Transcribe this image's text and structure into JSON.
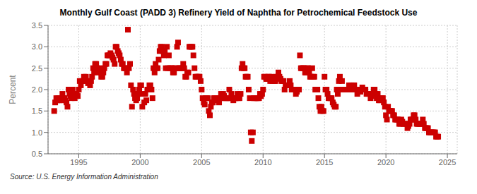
{
  "chart_data": {
    "type": "scatter",
    "title": "Monthly Gulf Coast (PADD 3) Refinery Yield of Naphtha for Petrochemical Feedstock Use",
    "ylabel": "Percent",
    "annotations": [
      "Source: U.S. Energy Information Administration"
    ],
    "xlim": [
      1992.5,
      2025.8
    ],
    "xticks": [
      1995,
      2000,
      2005,
      2010,
      2015,
      2020,
      2025
    ],
    "ylim": [
      0.5,
      3.5
    ],
    "yticks": [
      0.5,
      {
        "value": 1.0,
        "label": "1.0"
      },
      1.5,
      {
        "value": 2.0,
        "label": "2.0"
      },
      2.5,
      {
        "value": 3.0,
        "label": "3.0"
      },
      3.5
    ],
    "grid": true,
    "color": "#cc0000",
    "marker": "square",
    "x": [
      1993.0,
      1993.08,
      1993.17,
      1993.25,
      1993.33,
      1993.42,
      1993.5,
      1993.58,
      1993.67,
      1993.75,
      1993.83,
      1993.92,
      1994.0,
      1994.08,
      1994.17,
      1994.25,
      1994.33,
      1994.42,
      1994.5,
      1994.58,
      1994.67,
      1994.75,
      1994.83,
      1994.92,
      1995.0,
      1995.08,
      1995.17,
      1995.25,
      1995.33,
      1995.42,
      1995.5,
      1995.58,
      1995.67,
      1995.75,
      1995.83,
      1995.92,
      1996.0,
      1996.08,
      1996.17,
      1996.25,
      1996.33,
      1996.42,
      1996.5,
      1996.58,
      1996.67,
      1996.75,
      1996.83,
      1996.92,
      1997.0,
      1997.08,
      1997.17,
      1997.25,
      1997.33,
      1997.42,
      1997.5,
      1997.58,
      1997.67,
      1997.75,
      1997.83,
      1997.92,
      1998.0,
      1998.08,
      1998.17,
      1998.25,
      1998.33,
      1998.42,
      1998.5,
      1998.58,
      1998.67,
      1998.75,
      1998.83,
      1998.92,
      1999.0,
      1999.08,
      1999.17,
      1999.25,
      1999.33,
      1999.42,
      1999.5,
      1999.58,
      1999.67,
      1999.75,
      1999.83,
      1999.92,
      2000.0,
      2000.08,
      2000.17,
      2000.25,
      2000.33,
      2000.42,
      2000.5,
      2000.58,
      2000.67,
      2000.75,
      2000.83,
      2000.92,
      2001.0,
      2001.08,
      2001.17,
      2001.25,
      2001.33,
      2001.42,
      2001.5,
      2001.58,
      2001.67,
      2001.75,
      2001.83,
      2001.92,
      2002.0,
      2002.08,
      2002.17,
      2002.25,
      2002.33,
      2002.42,
      2002.5,
      2002.58,
      2002.67,
      2002.75,
      2002.83,
      2002.92,
      2003.0,
      2003.08,
      2003.17,
      2003.25,
      2003.33,
      2003.42,
      2003.5,
      2003.58,
      2003.67,
      2003.75,
      2003.83,
      2003.92,
      2004.0,
      2004.08,
      2004.17,
      2004.25,
      2004.33,
      2004.42,
      2004.5,
      2004.58,
      2004.67,
      2004.75,
      2004.83,
      2004.92,
      2005.0,
      2005.08,
      2005.17,
      2005.25,
      2005.33,
      2005.42,
      2005.5,
      2005.58,
      2005.67,
      2005.75,
      2005.83,
      2005.92,
      2006.0,
      2006.08,
      2006.17,
      2006.25,
      2006.33,
      2006.42,
      2006.5,
      2006.58,
      2006.67,
      2006.75,
      2006.83,
      2006.92,
      2007.0,
      2007.08,
      2007.17,
      2007.25,
      2007.33,
      2007.42,
      2007.5,
      2007.58,
      2007.67,
      2007.75,
      2007.83,
      2007.92,
      2008.0,
      2008.08,
      2008.17,
      2008.25,
      2008.33,
      2008.42,
      2008.5,
      2008.58,
      2008.67,
      2008.75,
      2008.83,
      2008.92,
      2009.0,
      2009.08,
      2009.17,
      2009.25,
      2009.33,
      2009.42,
      2009.5,
      2009.58,
      2009.67,
      2009.75,
      2009.83,
      2009.92,
      2010.0,
      2010.08,
      2010.17,
      2010.25,
      2010.33,
      2010.42,
      2010.5,
      2010.58,
      2010.67,
      2010.75,
      2010.83,
      2010.92,
      2011.0,
      2011.08,
      2011.17,
      2011.25,
      2011.33,
      2011.42,
      2011.5,
      2011.58,
      2011.67,
      2011.75,
      2011.83,
      2011.92,
      2012.0,
      2012.08,
      2012.17,
      2012.25,
      2012.33,
      2012.42,
      2012.5,
      2012.58,
      2012.67,
      2012.75,
      2012.83,
      2012.92,
      2013.0,
      2013.08,
      2013.17,
      2013.25,
      2013.33,
      2013.42,
      2013.5,
      2013.58,
      2013.67,
      2013.75,
      2013.83,
      2013.92,
      2014.0,
      2014.08,
      2014.17,
      2014.25,
      2014.33,
      2014.42,
      2014.5,
      2014.58,
      2014.67,
      2014.75,
      2014.83,
      2014.92,
      2015.0,
      2015.08,
      2015.17,
      2015.25,
      2015.33,
      2015.42,
      2015.5,
      2015.58,
      2015.67,
      2015.75,
      2015.83,
      2015.92,
      2016.0,
      2016.08,
      2016.17,
      2016.25,
      2016.33,
      2016.42,
      2016.5,
      2016.58,
      2016.67,
      2016.75,
      2016.83,
      2016.92,
      2017.0,
      2017.08,
      2017.17,
      2017.25,
      2017.33,
      2017.42,
      2017.5,
      2017.58,
      2017.67,
      2017.75,
      2017.83,
      2017.92,
      2018.0,
      2018.08,
      2018.17,
      2018.25,
      2018.33,
      2018.42,
      2018.5,
      2018.58,
      2018.67,
      2018.75,
      2018.83,
      2018.92,
      2019.0,
      2019.08,
      2019.17,
      2019.25,
      2019.33,
      2019.42,
      2019.5,
      2019.58,
      2019.67,
      2019.75,
      2019.83,
      2019.92,
      2020.0,
      2020.08,
      2020.17,
      2020.25,
      2020.33,
      2020.42,
      2020.5,
      2020.58,
      2020.67,
      2020.75,
      2020.83,
      2020.92,
      2021.0,
      2021.08,
      2021.17,
      2021.25,
      2021.33,
      2021.42,
      2021.5,
      2021.58,
      2021.67,
      2021.75,
      2021.83,
      2021.92,
      2022.0,
      2022.08,
      2022.17,
      2022.25,
      2022.33,
      2022.42,
      2022.5,
      2022.58,
      2022.67,
      2022.75,
      2022.83,
      2022.92,
      2023.0,
      2023.08,
      2023.17,
      2023.25,
      2023.33,
      2023.42,
      2023.5,
      2023.58,
      2023.67,
      2023.75,
      2023.83,
      2023.92,
      2024.0,
      2024.08,
      2024.17,
      2024.25
    ],
    "values": [
      1.5,
      1.7,
      1.8,
      1.75,
      1.8,
      1.75,
      1.8,
      1.75,
      1.9,
      1.8,
      1.8,
      1.75,
      1.7,
      1.6,
      2.0,
      1.9,
      1.85,
      1.8,
      2.0,
      1.9,
      1.8,
      1.9,
      1.9,
      1.85,
      2.0,
      2.2,
      2.1,
      2.2,
      2.2,
      2.3,
      2.25,
      2.3,
      2.2,
      2.15,
      2.2,
      2.1,
      2.2,
      2.3,
      2.5,
      2.4,
      2.6,
      2.6,
      2.5,
      2.4,
      2.5,
      2.4,
      2.3,
      2.3,
      2.4,
      2.5,
      2.6,
      2.6,
      2.8,
      2.8,
      2.8,
      2.85,
      2.8,
      2.75,
      2.7,
      2.6,
      3.0,
      3.0,
      2.9,
      2.85,
      2.8,
      2.7,
      2.6,
      2.6,
      2.5,
      2.5,
      2.5,
      2.4,
      3.4,
      2.5,
      2.6,
      2.1,
      1.6,
      2.0,
      1.9,
      1.8,
      1.75,
      1.8,
      1.9,
      2.0,
      2.1,
      2.1,
      1.6,
      1.9,
      1.7,
      1.9,
      1.75,
      2.0,
      2.0,
      2.1,
      2.1,
      2.0,
      1.8,
      2.5,
      2.4,
      2.6,
      2.5,
      2.5,
      2.7,
      2.9,
      3.0,
      3.0,
      2.9,
      2.8,
      2.9,
      2.5,
      3.0,
      2.5,
      2.8,
      2.5,
      2.5,
      2.5,
      2.4,
      2.4,
      2.5,
      2.5,
      3.0,
      3.1,
      2.5,
      2.5,
      2.5,
      2.5,
      2.6,
      2.5,
      2.3,
      2.3,
      2.4,
      2.4,
      3.0,
      3.0,
      3.0,
      3.0,
      2.8,
      2.5,
      2.3,
      2.3,
      2.3,
      2.3,
      2.3,
      2.2,
      2.0,
      1.8,
      1.7,
      1.65,
      1.8,
      1.8,
      1.8,
      1.5,
      1.4,
      1.6,
      1.7,
      1.7,
      1.8,
      1.8,
      1.75,
      1.8,
      1.8,
      1.7,
      1.8,
      1.9,
      1.8,
      1.9,
      1.85,
      1.8,
      1.8,
      1.8,
      1.8,
      2.0,
      1.8,
      1.9,
      1.8,
      1.75,
      1.8,
      1.8,
      1.8,
      1.9,
      1.8,
      1.8,
      1.9,
      2.5,
      2.6,
      2.5,
      2.5,
      2.3,
      2.3,
      2.3,
      2.0,
      1.8,
      1.0,
      0.8,
      1.0,
      1.8,
      1.8,
      1.8,
      1.8,
      1.8,
      1.8,
      1.9,
      1.85,
      1.9,
      2.0,
      2.3,
      2.3,
      2.25,
      2.25,
      2.3,
      2.3,
      2.2,
      2.3,
      2.2,
      2.25,
      2.2,
      2.2,
      2.3,
      2.3,
      2.4,
      2.3,
      2.25,
      2.2,
      2.2,
      2.2,
      2.0,
      2.1,
      2.1,
      2.1,
      2.1,
      2.2,
      2.1,
      2.0,
      2.0,
      2.0,
      2.0,
      1.9,
      1.95,
      2.0,
      2.0,
      2.8,
      2.5,
      2.5,
      2.5,
      2.5,
      2.4,
      2.4,
      2.5,
      2.5,
      2.4,
      2.3,
      2.3,
      2.5,
      2.3,
      2.3,
      2.0,
      2.0,
      2.0,
      1.8,
      1.6,
      1.5,
      1.6,
      1.5,
      1.5,
      2.3,
      2.0,
      2.0,
      1.9,
      1.8,
      1.8,
      1.8,
      1.8,
      1.7,
      1.65,
      1.6,
      1.6,
      2.0,
      1.9,
      2.2,
      2.3,
      2.0,
      2.2,
      2.0,
      2.0,
      2.0,
      2.0,
      2.0,
      2.0,
      2.1,
      2.0,
      2.1,
      2.0,
      2.1,
      2.1,
      2.0,
      2.0,
      1.9,
      2.0,
      2.0,
      1.95,
      2.0,
      2.05,
      2.0,
      2.0,
      2.0,
      1.9,
      1.9,
      1.9,
      1.9,
      1.8,
      1.85,
      1.9,
      2.0,
      2.0,
      1.9,
      1.8,
      1.9,
      1.75,
      1.75,
      1.8,
      1.8,
      1.8,
      1.7,
      1.6,
      1.4,
      1.3,
      1.6,
      1.5,
      1.5,
      1.5,
      1.5,
      1.4,
      1.4,
      1.3,
      1.3,
      1.3,
      1.3,
      1.2,
      1.2,
      1.3,
      1.25,
      1.2,
      1.2,
      1.2,
      1.2,
      1.1,
      1.15,
      1.2,
      1.3,
      1.3,
      1.3,
      1.4,
      1.4,
      1.3,
      1.2,
      1.2,
      1.2,
      1.2,
      1.2,
      1.2,
      1.3,
      1.2,
      1.1,
      1.1,
      1.1,
      1.1,
      1.0,
      1.0,
      1.0,
      1.0,
      1.0,
      1.0,
      1.0,
      0.9,
      0.9,
      0.9
    ]
  }
}
